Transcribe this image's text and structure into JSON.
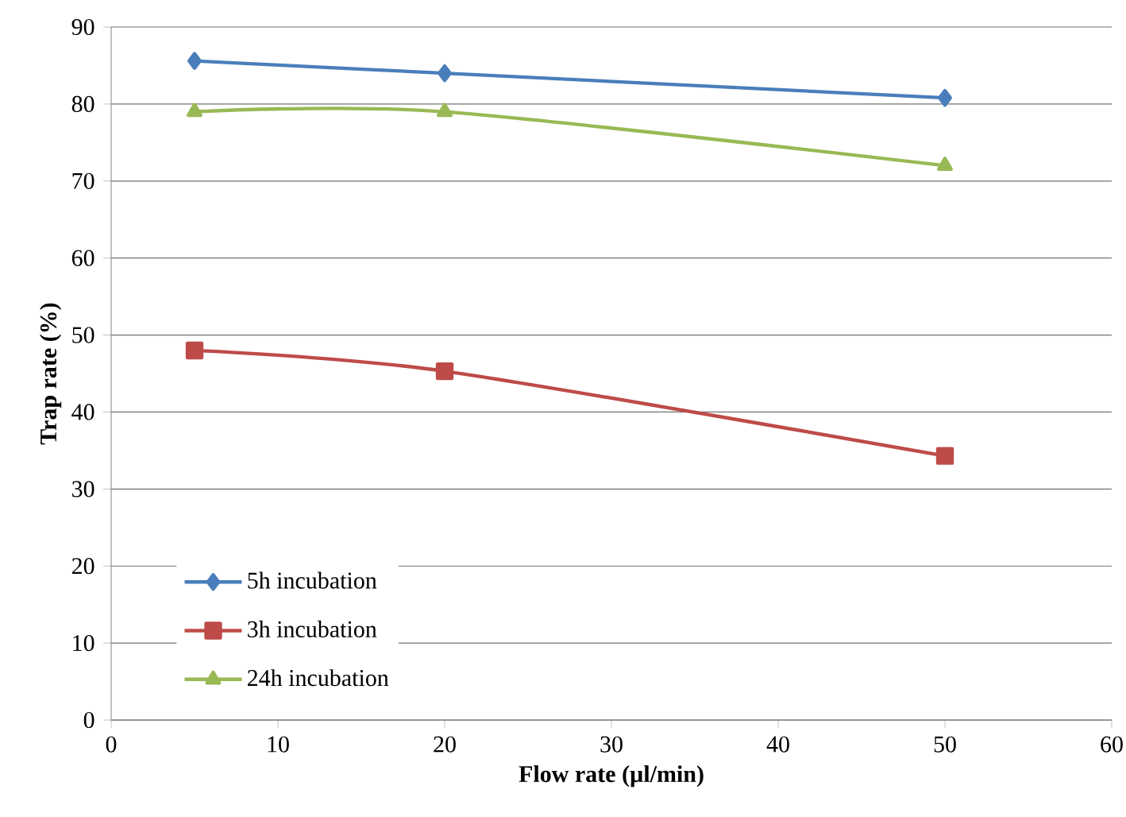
{
  "chart_data": {
    "type": "line",
    "xlabel": "Flow rate (µl/min)",
    "ylabel": "Trap rate (%)",
    "x": [
      5,
      20,
      50
    ],
    "series": [
      {
        "name": "5h incubation",
        "color": "#4a7ebb",
        "marker": "diamond",
        "values": [
          85.6,
          84,
          80.8
        ]
      },
      {
        "name": "3h incubation",
        "color": "#be4b48",
        "marker": "square",
        "values": [
          48,
          45.3,
          34.3
        ]
      },
      {
        "name": "24h incubation",
        "color": "#98b954",
        "marker": "triangle",
        "values": [
          79,
          79,
          72
        ]
      }
    ],
    "xlim": [
      0,
      60
    ],
    "xticks": [
      0,
      10,
      20,
      30,
      40,
      50,
      60
    ],
    "ylim": [
      0,
      90
    ],
    "yticks": [
      0,
      10,
      20,
      30,
      40,
      50,
      60,
      70,
      80,
      90
    ],
    "grid": "y",
    "legend": "bottom left",
    "line_style": "solid"
  }
}
